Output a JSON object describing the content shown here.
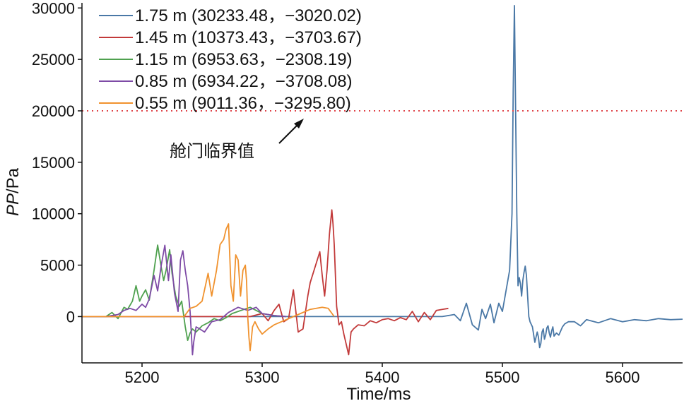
{
  "chart_data": {
    "type": "line",
    "title": "",
    "xlabel": "Time/ms",
    "ylabel_italic": "PP",
    "ylabel_rest": "/Pa",
    "xlim": [
      5150,
      5650
    ],
    "ylim": [
      -4500,
      30500
    ],
    "xticks": [
      5200,
      5300,
      5400,
      5500,
      5600
    ],
    "yticks": [
      0,
      5000,
      10000,
      15000,
      20000,
      25000,
      30000
    ],
    "grid": false,
    "legend_position": "top-left",
    "threshold": {
      "y": 20000,
      "color": "#e0454a",
      "label": "舱门临界值"
    },
    "series": [
      {
        "name": "1.75 m (30233.48，−3020.02)",
        "color": "#4a78a6",
        "x": [
          5150,
          5300,
          5420,
          5450,
          5460,
          5465,
          5470,
          5475,
          5480,
          5483,
          5486,
          5490,
          5493,
          5497,
          5500,
          5503,
          5506,
          5508,
          5509,
          5510,
          5511,
          5512,
          5513,
          5514,
          5515,
          5516,
          5517,
          5518,
          5519,
          5520,
          5521,
          5522,
          5523,
          5525,
          5527,
          5529,
          5530,
          5531,
          5532,
          5533,
          5534,
          5535,
          5536,
          5537,
          5538,
          5539,
          5540,
          5541,
          5542,
          5543,
          5545,
          5547,
          5550,
          5552,
          5555,
          5560,
          5565,
          5570,
          5580,
          5590,
          5600,
          5610,
          5620,
          5630,
          5640,
          5650
        ],
        "y": [
          0,
          0,
          0,
          0,
          200,
          -400,
          1300,
          -800,
          -1300,
          700,
          -200,
          1200,
          -600,
          1300,
          500,
          2500,
          4500,
          10000,
          22000,
          30233,
          20000,
          10000,
          3000,
          3800,
          3200,
          2000,
          3500,
          4300,
          4900,
          4000,
          2000,
          0,
          -500,
          -1000,
          -2500,
          -1500,
          -2000,
          -3020,
          -2600,
          -1500,
          -1200,
          -2200,
          -1800,
          -1100,
          -900,
          -1600,
          -2000,
          -1400,
          -1000,
          -1900,
          -1600,
          -1800,
          -1000,
          -700,
          -500,
          -500,
          -900,
          -300,
          -600,
          -200,
          -500,
          -300,
          -400,
          -200,
          -300,
          -250
        ]
      },
      {
        "name": "1.45 m (10373.43，−3703.67)",
        "color": "#c23a3a",
        "x": [
          5150,
          5290,
          5300,
          5305,
          5310,
          5314,
          5318,
          5322,
          5326,
          5330,
          5334,
          5338,
          5340,
          5344,
          5348,
          5350,
          5352,
          5354,
          5356,
          5358,
          5359,
          5360,
          5361,
          5362,
          5364,
          5366,
          5368,
          5370,
          5372,
          5374,
          5376,
          5380,
          5385,
          5390,
          5395,
          5400,
          5405,
          5410,
          5415,
          5420,
          5425,
          5430,
          5435,
          5440,
          5445,
          5450,
          5455
        ],
        "y": [
          0,
          0,
          300,
          -400,
          600,
          1200,
          -500,
          -200,
          2600,
          -1500,
          -1200,
          2000,
          3300,
          4800,
          6300,
          4000,
          2000,
          4500,
          8000,
          10373,
          9000,
          7000,
          4000,
          1000,
          -800,
          -500,
          -1700,
          -2700,
          -3704,
          -1500,
          -1200,
          -800,
          -900,
          -400,
          -600,
          -300,
          -200,
          -400,
          -100,
          -300,
          500,
          -500,
          400,
          -300,
          600,
          700,
          800
        ]
      },
      {
        "name": "1.15 m (6953.63，−2308.19)",
        "color": "#4fa14f",
        "x": [
          5150,
          5170,
          5175,
          5180,
          5185,
          5188,
          5192,
          5195,
          5198,
          5200,
          5203,
          5206,
          5210,
          5213,
          5216,
          5218,
          5220,
          5223,
          5225,
          5228,
          5231,
          5233,
          5236,
          5238,
          5240,
          5242,
          5245,
          5250,
          5255,
          5260,
          5265,
          5270,
          5275,
          5280,
          5285,
          5290,
          5295,
          5300,
          5310,
          5320
        ],
        "y": [
          0,
          0,
          400,
          -200,
          900,
          700,
          1500,
          3000,
          1500,
          2000,
          2600,
          1600,
          4500,
          6954,
          4800,
          3500,
          4500,
          6500,
          4200,
          2000,
          1000,
          1500,
          -1000,
          -2308,
          -1600,
          -1200,
          -1500,
          -900,
          -600,
          -200,
          -400,
          -100,
          300,
          500,
          700,
          900,
          600,
          300,
          100,
          0
        ]
      },
      {
        "name": "0.85 m (6934.22，−3708.08)",
        "color": "#7e4ba6",
        "x": [
          5150,
          5170,
          5180,
          5185,
          5190,
          5195,
          5200,
          5203,
          5206,
          5210,
          5213,
          5216,
          5219,
          5222,
          5224,
          5227,
          5230,
          5232,
          5234,
          5236,
          5238,
          5240,
          5241,
          5242,
          5243,
          5245,
          5248,
          5252,
          5258,
          5265,
          5272,
          5280,
          5288,
          5295,
          5300,
          5305,
          5310,
          5320
        ],
        "y": [
          0,
          0,
          200,
          600,
          800,
          600,
          1200,
          900,
          1700,
          4000,
          2500,
          5000,
          6934,
          3500,
          6000,
          2300,
          500,
          5500,
          6400,
          4500,
          3000,
          500,
          -1500,
          -3708,
          -2500,
          -1000,
          -1200,
          -1500,
          -500,
          -300,
          400,
          900,
          600,
          900,
          300,
          200,
          100,
          0
        ]
      },
      {
        "name": "0.55 m (9011.36，−3295.80)",
        "color": "#f0922e",
        "x": [
          5150,
          5220,
          5235,
          5240,
          5245,
          5250,
          5255,
          5258,
          5262,
          5265,
          5268,
          5270,
          5272,
          5274,
          5276,
          5278,
          5280,
          5282,
          5284,
          5286,
          5287,
          5288,
          5289,
          5290,
          5291,
          5292,
          5294,
          5297,
          5300,
          5305,
          5310,
          5320,
          5330,
          5340,
          5350,
          5355,
          5360
        ],
        "y": [
          0,
          0,
          0,
          800,
          1000,
          1500,
          4200,
          2000,
          4500,
          7000,
          7500,
          8500,
          9011,
          3000,
          1500,
          6000,
          5500,
          2000,
          4500,
          5000,
          3500,
          0,
          -2000,
          -3296,
          -2200,
          -1000,
          -500,
          -1200,
          -1700,
          -1200,
          -800,
          -300,
          200,
          700,
          900,
          800,
          0
        ]
      }
    ]
  }
}
